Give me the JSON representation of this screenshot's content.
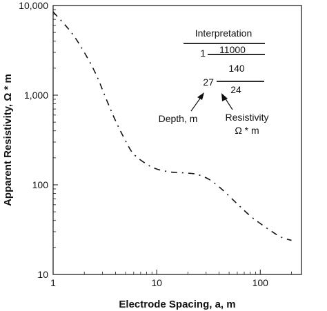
{
  "chart_data": {
    "type": "line",
    "xlabel": "Electrode Spacing, a, m",
    "ylabel": "Apparent Resistivity, Ω * m",
    "xscale": "log",
    "yscale": "log",
    "xlim": [
      1,
      250
    ],
    "ylim": [
      10,
      10000
    ],
    "grid": false,
    "line_style": "dash-dot",
    "x_ticks": [
      {
        "value": 1,
        "label": "1"
      },
      {
        "value": 10,
        "label": "10"
      },
      {
        "value": 100,
        "label": "100"
      }
    ],
    "y_ticks": [
      {
        "value": 10,
        "label": "10"
      },
      {
        "value": 100,
        "label": "100"
      },
      {
        "value": 1000,
        "label": "1,000"
      },
      {
        "value": 10000,
        "label": "10,000"
      }
    ],
    "series": [
      {
        "x": [
          1.0,
          1.5,
          2.0,
          2.6,
          3.2,
          4.0,
          5.0,
          6.0,
          8.0,
          10,
          13,
          16,
          20,
          25,
          32,
          40,
          50,
          63,
          80,
          100,
          130,
          160,
          200
        ],
        "y": [
          8500,
          5000,
          3000,
          1700,
          950,
          520,
          310,
          220,
          170,
          150,
          140,
          137,
          135,
          130,
          115,
          95,
          75,
          58,
          45,
          37,
          30,
          26,
          24
        ]
      }
    ],
    "annotations": {
      "interpretation_label": "Interpretation",
      "layer1_depth": "1",
      "layer1_resistivity": "11000",
      "layer2_resistivity": "140",
      "layer2_depth": "27",
      "layer3_resistivity": "24",
      "depth_label": "Depth, m",
      "resistivity_label": "Resistivity",
      "resistivity_unit": "Ω * m"
    }
  }
}
